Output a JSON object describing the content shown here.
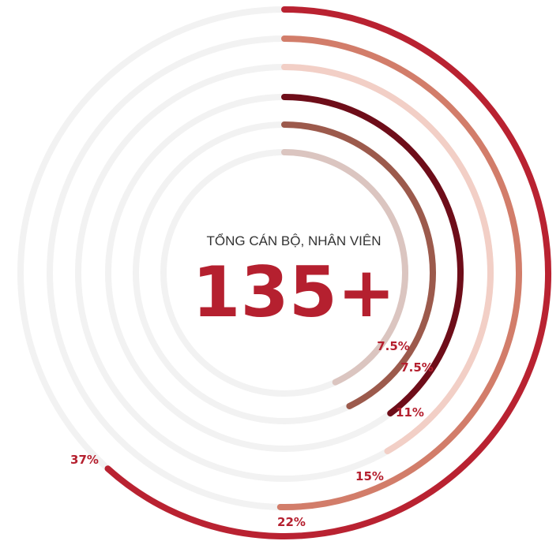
{
  "chart_data": {
    "type": "radial-bar",
    "center_label": "TỔNG CÁN BỘ, NHÂN VIÊN",
    "center_value": "135+",
    "unit": "%",
    "track_color": "#f2f2f2",
    "text_color": "#b5202f",
    "series": [
      {
        "value": 37,
        "label": "37%",
        "color": "#b92231"
      },
      {
        "value": 22,
        "label": "22%",
        "color": "#d27d6a"
      },
      {
        "value": 15,
        "label": "15%",
        "color": "#f2cfc6"
      },
      {
        "value": 11,
        "label": "11%",
        "color": "#6e0d19"
      },
      {
        "value": 7.5,
        "label": "7.5%",
        "color": "#9c5a4c"
      },
      {
        "value": 7.5,
        "label": "7.5%",
        "color": "#dbc5c0"
      }
    ]
  }
}
